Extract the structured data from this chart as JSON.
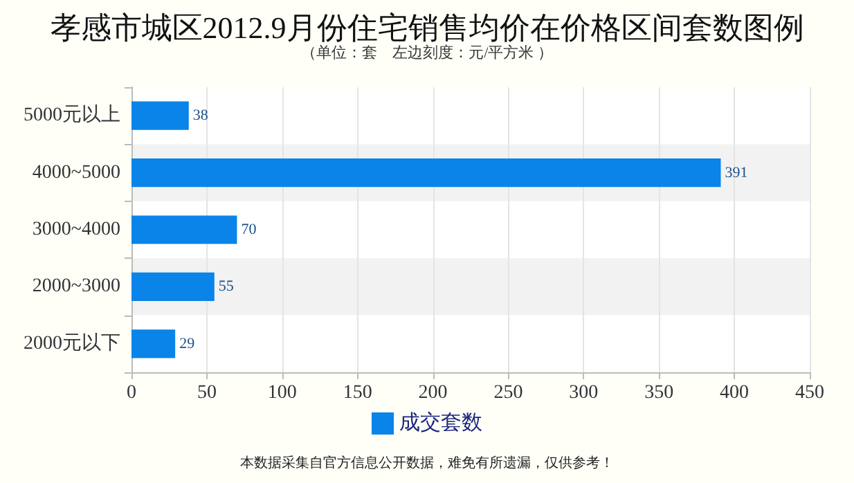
{
  "chart_data": {
    "type": "bar",
    "orientation": "horizontal",
    "title": "孝感市城区2012.9月份住宅销售均价在价格区间套数图例",
    "subtitle": "（单位：套　左边刻度：元/平方米 ）",
    "categories": [
      "5000元以上",
      "4000~5000",
      "3000~4000",
      "2000~3000",
      "2000元以下"
    ],
    "series": [
      {
        "name": "成交套数",
        "color": "#0a84e8",
        "values": [
          38,
          391,
          70,
          55,
          29
        ]
      }
    ],
    "xlim": [
      0,
      450
    ],
    "xticks": [
      0,
      50,
      100,
      150,
      200,
      250,
      300,
      350,
      400,
      450
    ],
    "data_labels": true,
    "grid": "x",
    "legend": "bottom",
    "annotations": [
      "本数据采集自官方信息公开数据，难免有所遗漏，仅供参考！"
    ]
  }
}
